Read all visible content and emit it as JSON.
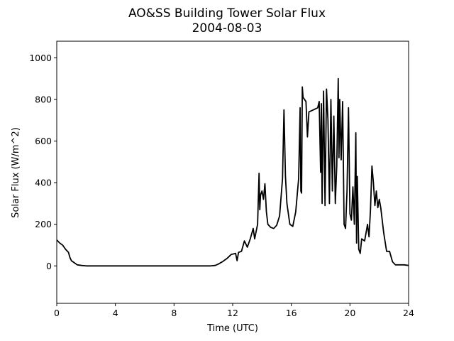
{
  "chart_data": {
    "type": "line",
    "title": "AO&SS Building Tower Solar Flux",
    "subtitle": "2004-08-03",
    "xlabel": "Time (UTC)",
    "ylabel": "Solar Flux (W/m^2)",
    "xlim": [
      0,
      24
    ],
    "ylim": [
      -180,
      1080
    ],
    "xticks": [
      0,
      4,
      8,
      12,
      16,
      20,
      24
    ],
    "yticks": [
      0,
      200,
      400,
      600,
      800,
      1000
    ],
    "grid": false,
    "series": [
      {
        "color": "#000000",
        "x": [
          0,
          0.2,
          0.4,
          0.6,
          0.8,
          0.9,
          1.0,
          1.2,
          1.4,
          1.7,
          2,
          4,
          6,
          8,
          10,
          10.5,
          10.8,
          11.0,
          11.3,
          11.6,
          11.9,
          12.2,
          12.3,
          12.4,
          12.6,
          12.8,
          13.0,
          13.2,
          13.4,
          13.5,
          13.7,
          13.8,
          13.85,
          13.9,
          14.0,
          14.1,
          14.2,
          14.3,
          14.4,
          14.6,
          14.8,
          15.0,
          15.2,
          15.4,
          15.5,
          15.6,
          15.7,
          15.9,
          16.1,
          16.3,
          16.5,
          16.6,
          16.65,
          16.7,
          16.75,
          16.8,
          17.0,
          17.1,
          17.2,
          17.5,
          17.8,
          17.9,
          18.0,
          18.05,
          18.1,
          18.2,
          18.3,
          18.4,
          18.5,
          18.6,
          18.7,
          18.8,
          18.9,
          19.0,
          19.1,
          19.2,
          19.25,
          19.3,
          19.4,
          19.5,
          19.6,
          19.7,
          19.8,
          19.9,
          20.0,
          20.1,
          20.2,
          20.3,
          20.4,
          20.45,
          20.5,
          20.6,
          20.7,
          20.8,
          21.0,
          21.2,
          21.3,
          21.4,
          21.5,
          21.6,
          21.7,
          21.8,
          21.9,
          22.0,
          22.1,
          22.3,
          22.5,
          22.7,
          22.9,
          23.1,
          23.4,
          23.7,
          24
        ],
        "values": [
          125,
          110,
          100,
          80,
          65,
          40,
          25,
          15,
          5,
          2,
          0,
          0,
          0,
          0,
          0,
          0,
          2,
          8,
          20,
          35,
          55,
          60,
          25,
          65,
          70,
          120,
          90,
          130,
          180,
          130,
          200,
          445,
          270,
          340,
          360,
          320,
          395,
          260,
          200,
          185,
          180,
          195,
          240,
          420,
          750,
          430,
          300,
          200,
          190,
          260,
          420,
          760,
          360,
          350,
          860,
          810,
          790,
          620,
          740,
          750,
          760,
          790,
          450,
          780,
          300,
          840,
          290,
          850,
          700,
          300,
          800,
          360,
          720,
          300,
          480,
          900,
          520,
          800,
          510,
          790,
          200,
          180,
          360,
          760,
          250,
          220,
          380,
          200,
          640,
          110,
          430,
          80,
          60,
          130,
          120,
          200,
          140,
          270,
          480,
          400,
          290,
          360,
          280,
          320,
          280,
          160,
          70,
          70,
          20,
          5,
          5,
          5,
          2
        ]
      }
    ]
  }
}
